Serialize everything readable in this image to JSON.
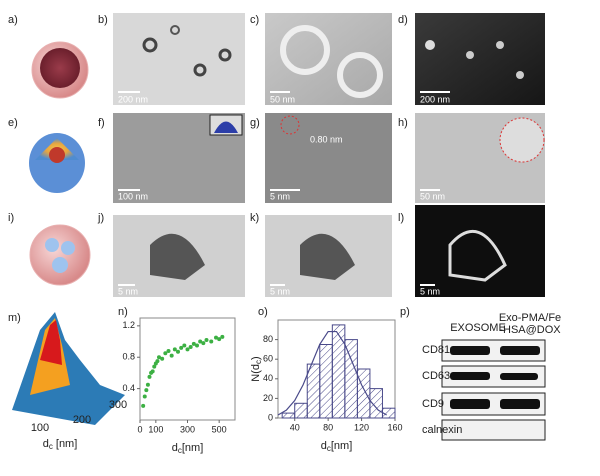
{
  "panel_labels": [
    "a)",
    "b)",
    "c)",
    "d)",
    "e)",
    "f)",
    "g)",
    "h)",
    "i)",
    "j)",
    "k)",
    "l)",
    "m)",
    "n)",
    "o)",
    "p)"
  ],
  "scale_bars": {
    "b": "200 nm",
    "c": "50 nm",
    "d": "200 nm",
    "f": "100 nm",
    "g": "5 nm",
    "h": "50 nm",
    "j": "5 nm",
    "k": "5 nm",
    "l": "5 nm"
  },
  "annotations": {
    "g": "0.80 nm"
  },
  "m": {
    "ticks": [
      "100",
      "200",
      "300"
    ],
    "xlabel": {
      "main": "d",
      "sub": "c",
      "unit": " [nm]"
    }
  },
  "chart_data": [
    {
      "type": "scatter",
      "color": "#3cb043",
      "x": [
        20,
        30,
        40,
        50,
        60,
        70,
        80,
        90,
        100,
        110,
        120,
        140,
        160,
        180,
        200,
        220,
        240,
        260,
        280,
        300,
        320,
        340,
        360,
        380,
        400,
        420,
        450,
        480,
        500,
        520
      ],
      "y": [
        0.18,
        0.3,
        0.38,
        0.45,
        0.55,
        0.6,
        0.62,
        0.68,
        0.72,
        0.75,
        0.8,
        0.78,
        0.85,
        0.88,
        0.82,
        0.9,
        0.87,
        0.92,
        0.95,
        0.9,
        0.93,
        0.97,
        0.95,
        1.0,
        0.98,
        1.02,
        1.0,
        1.05,
        1.03,
        1.06
      ],
      "xlim": [
        0,
        600
      ],
      "ylim": [
        0,
        1.3
      ],
      "xticks": [
        0,
        100,
        300,
        500
      ],
      "yticks": [
        0.4,
        0.8,
        1.2
      ],
      "xlabel": {
        "main": "d",
        "sub": "c",
        "unit": "[nm]"
      }
    },
    {
      "type": "histogram",
      "color": "#4a4a8a",
      "bins": [
        25,
        40,
        55,
        70,
        85,
        100,
        115,
        130,
        145,
        160
      ],
      "counts": [
        5,
        15,
        55,
        75,
        95,
        80,
        50,
        30,
        10
      ],
      "fit": {
        "x": [
          20,
          30,
          40,
          50,
          60,
          70,
          80,
          90,
          100,
          110,
          120,
          130,
          140,
          150
        ],
        "y": [
          3.1,
          8.0,
          17.8,
          33.8,
          54.6,
          75.2,
          88.2,
          88.2,
          75.2,
          54.6,
          33.8,
          17.8,
          8.0,
          3.1
        ]
      },
      "xlim": [
        20,
        160
      ],
      "ylim": [
        0,
        100
      ],
      "xticks": [
        40,
        80,
        120,
        160
      ],
      "yticks": [
        0,
        20,
        40,
        60,
        80
      ],
      "ylabel": {
        "main": "N(d",
        "sub": "c",
        "unit": ")"
      },
      "xlabel": {
        "main": "d",
        "sub": "c",
        "unit": "[nm]"
      }
    }
  ],
  "blot": {
    "headers": [
      "EXOSOME",
      [
        "Exo-PMA/Fe",
        "-HSA@DOX"
      ]
    ],
    "rows": [
      "CD81",
      "CD63",
      "CD9",
      "calnexin"
    ]
  }
}
